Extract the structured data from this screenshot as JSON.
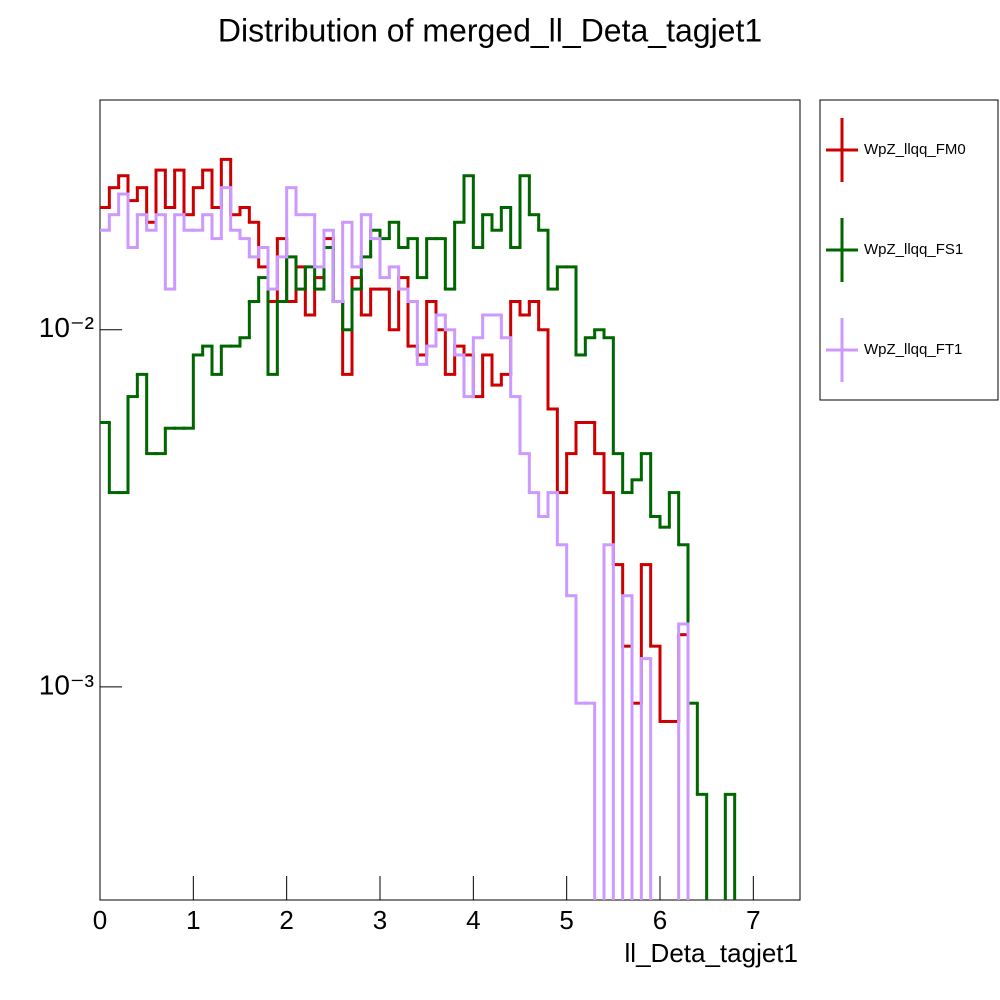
{
  "chart_data": {
    "type": "step-histogram",
    "title": "Distribution of merged_ll_Deta_tagjet1",
    "x_label": "ll_Deta_tagjet1",
    "log_y": true,
    "bins": [
      0,
      0.1,
      0.2,
      0.3,
      0.4,
      0.5,
      0.6,
      0.7,
      0.8,
      0.9,
      1.0,
      1.1,
      1.2,
      1.3,
      1.4,
      1.5,
      1.6,
      1.7,
      1.8,
      1.9,
      2.0,
      2.1,
      2.2,
      2.3,
      2.4,
      2.5,
      2.6,
      2.7,
      2.8,
      2.9,
      3.0,
      3.1,
      3.2,
      3.3,
      3.4,
      3.5,
      3.6,
      3.7,
      3.8,
      3.9,
      4.0,
      4.1,
      4.2,
      4.3,
      4.4,
      4.5,
      4.6,
      4.7,
      4.8,
      4.9,
      5.0,
      5.1,
      5.2,
      5.3,
      5.4,
      5.5,
      5.6,
      5.7,
      5.8,
      5.9,
      6.0,
      6.1,
      6.2,
      6.3,
      6.4,
      6.5,
      6.6,
      6.7,
      6.8,
      6.9,
      7.0,
      7.1,
      7.2,
      7.3,
      7.4,
      7.5
    ],
    "series": [
      {
        "name": "WpZ_llqq_FM0",
        "color": "#cc0000",
        "values": [
          0.022,
          0.025,
          0.027,
          0.023,
          0.025,
          0.02,
          0.028,
          0.022,
          0.028,
          0.021,
          0.025,
          0.028,
          0.022,
          0.03,
          0.021,
          0.022,
          0.02,
          0.015,
          0.012,
          0.018,
          0.012,
          0.015,
          0.011,
          0.014,
          0.018,
          0.012,
          0.0075,
          0.014,
          0.011,
          0.013,
          0.013,
          0.01,
          0.014,
          0.009,
          0.0085,
          0.012,
          0.01,
          0.0075,
          0.009,
          0.0085,
          0.0065,
          0.0085,
          0.007,
          0.0075,
          0.012,
          0.011,
          0.012,
          0.01,
          0.006,
          0.0035,
          0.0045,
          0.0055,
          0.0055,
          0.0045,
          0.0035,
          0.0022,
          0.0013,
          0.0009,
          0.0022,
          0.0013,
          0.0008,
          0.0008,
          0.0014,
          0,
          0,
          0,
          0,
          0,
          0,
          0,
          0,
          0,
          0,
          0,
          0
        ]
      },
      {
        "name": "WpZ_llqq_FS1",
        "color": "#006600",
        "values": [
          0.0055,
          0.0035,
          0.0035,
          0.0065,
          0.0075,
          0.0045,
          0.0045,
          0.0053,
          0.0053,
          0.0053,
          0.0085,
          0.009,
          0.0075,
          0.009,
          0.009,
          0.0095,
          0.012,
          0.014,
          0.0075,
          0.012,
          0.016,
          0.013,
          0.015,
          0.013,
          0.017,
          0.012,
          0.01,
          0.013,
          0.016,
          0.019,
          0.018,
          0.02,
          0.017,
          0.018,
          0.014,
          0.018,
          0.018,
          0.013,
          0.02,
          0.027,
          0.017,
          0.021,
          0.019,
          0.022,
          0.017,
          0.027,
          0.021,
          0.019,
          0.013,
          0.015,
          0.015,
          0.0085,
          0.0095,
          0.01,
          0.0095,
          0.0045,
          0.0035,
          0.0038,
          0.0045,
          0.003,
          0.0028,
          0.0035,
          0.0025,
          0.0009,
          0.0005,
          0,
          0,
          0.0005,
          0,
          0,
          0,
          0,
          0,
          0,
          0
        ]
      },
      {
        "name": "WpZ_llqq_FT1",
        "color": "#cc99ff",
        "values": [
          0.019,
          0.021,
          0.024,
          0.017,
          0.021,
          0.019,
          0.021,
          0.013,
          0.021,
          0.019,
          0.019,
          0.021,
          0.018,
          0.025,
          0.019,
          0.018,
          0.016,
          0.017,
          0.013,
          0.016,
          0.025,
          0.021,
          0.021,
          0.015,
          0.019,
          0.012,
          0.02,
          0.015,
          0.021,
          0.018,
          0.014,
          0.015,
          0.013,
          0.012,
          0.008,
          0.009,
          0.011,
          0.01,
          0.0085,
          0.0065,
          0.0095,
          0.011,
          0.011,
          0.0095,
          0.0065,
          0.0045,
          0.0035,
          0.003,
          0.0035,
          0.0025,
          0.0018,
          0.0009,
          0.0009,
          0.00025,
          0.0025,
          0,
          0.0018,
          0,
          0.0012,
          0,
          0,
          0,
          0.0015,
          0,
          0,
          0,
          0,
          0,
          0,
          0,
          0,
          0,
          0,
          0,
          0
        ]
      }
    ],
    "xlim": [
      0,
      7.5
    ],
    "xticks": [
      0,
      1,
      2,
      3,
      4,
      5,
      6,
      7
    ],
    "ylim": [
      0.000253,
      0.044
    ],
    "yticks": [
      {
        "value": 0.001,
        "label": "10⁻³"
      },
      {
        "value": 0.01,
        "label": "10⁻²"
      }
    ],
    "legend": "outside-right"
  }
}
